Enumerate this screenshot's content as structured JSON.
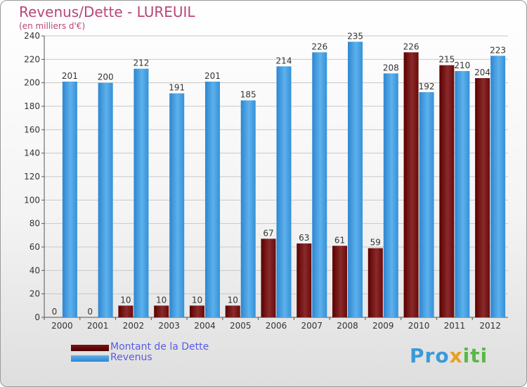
{
  "title": "Revenus/Dette - LUREUIL",
  "subtitle": "(en milliers d'€)",
  "chart_data": {
    "type": "bar",
    "title": "Revenus/Dette - LUREUIL",
    "ylabel": "(en milliers d'€)",
    "ylim": [
      0,
      240
    ],
    "yticks": [
      0,
      20,
      40,
      60,
      80,
      100,
      120,
      140,
      160,
      180,
      200,
      220,
      240
    ],
    "grid": true,
    "legend": "bottom-left",
    "categories": [
      "2000",
      "2001",
      "2002",
      "2003",
      "2004",
      "2005",
      "2006",
      "2007",
      "2008",
      "2009",
      "2010",
      "2011",
      "2012"
    ],
    "series": [
      {
        "name": "Montant de la Dette",
        "color": "#7a1414",
        "values": [
          0,
          0,
          10,
          10,
          10,
          10,
          67,
          63,
          61,
          59,
          226,
          215,
          204
        ]
      },
      {
        "name": "Revenus",
        "color": "#3d9be0",
        "values": [
          201,
          200,
          212,
          191,
          201,
          185,
          214,
          226,
          235,
          208,
          192,
          210,
          223
        ]
      }
    ]
  },
  "logo": {
    "part1": "Pro",
    "part2": "x",
    "part3": "iti"
  }
}
